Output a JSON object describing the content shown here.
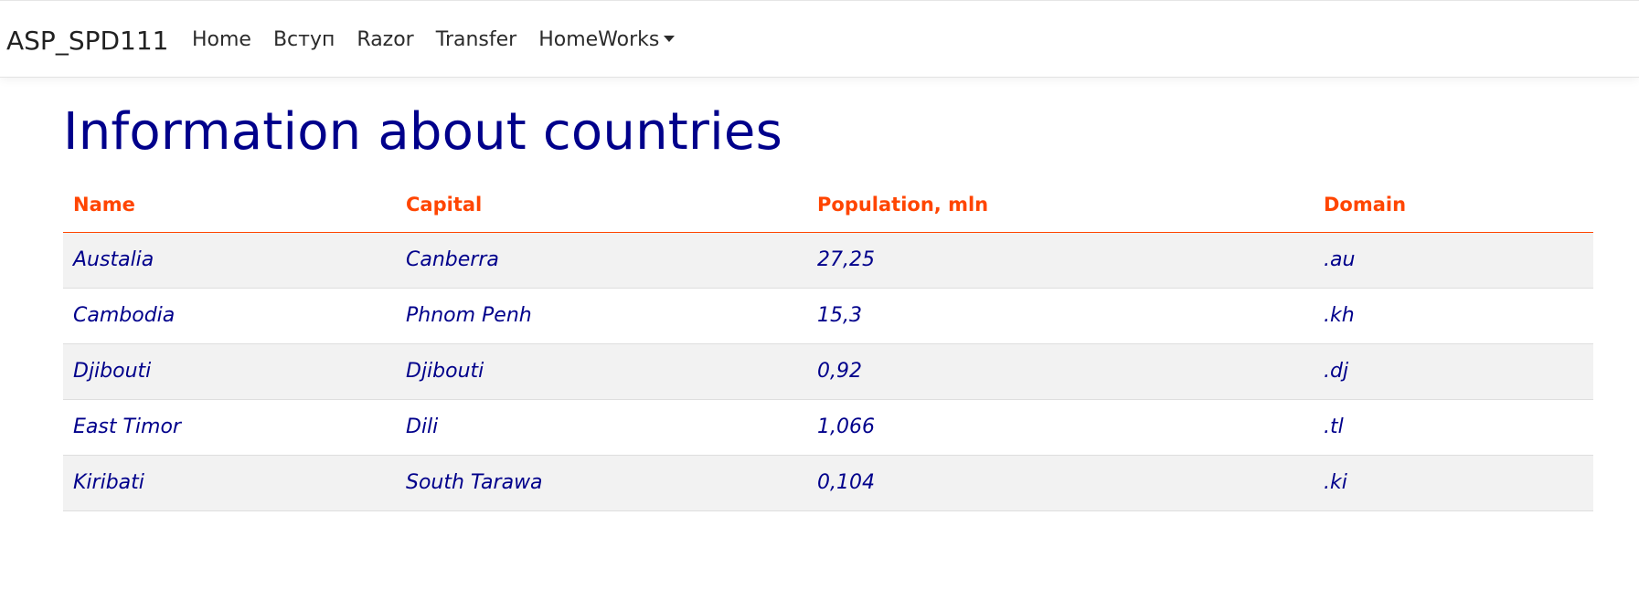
{
  "navbar": {
    "brand": "ASP_SPD111",
    "links": [
      {
        "label": "Home"
      },
      {
        "label": "Вступ"
      },
      {
        "label": "Razor"
      },
      {
        "label": "Transfer"
      },
      {
        "label": "HomeWorks"
      }
    ]
  },
  "main": {
    "title": "Information about countries",
    "table": {
      "headers": [
        "Name",
        "Capital",
        "Population, mln",
        "Domain"
      ],
      "rows": [
        [
          "Austalia",
          "Canberra",
          "27,25",
          ".au"
        ],
        [
          "Cambodia",
          "Phnom Penh",
          "15,3",
          ".kh"
        ],
        [
          "Djibouti",
          "Djibouti",
          "0,92",
          ".dj"
        ],
        [
          "East Timor",
          "Dili",
          "1,066",
          ".tl"
        ],
        [
          "Kiribati",
          "South Tarawa",
          "0,104",
          ".ki"
        ]
      ]
    }
  },
  "colors": {
    "title": "#00008b",
    "header_text": "#ff4500",
    "cell_text": "#00008b",
    "stripe": "#f2f2f2"
  },
  "icons": {
    "dropdown": "caret-down-icon"
  }
}
